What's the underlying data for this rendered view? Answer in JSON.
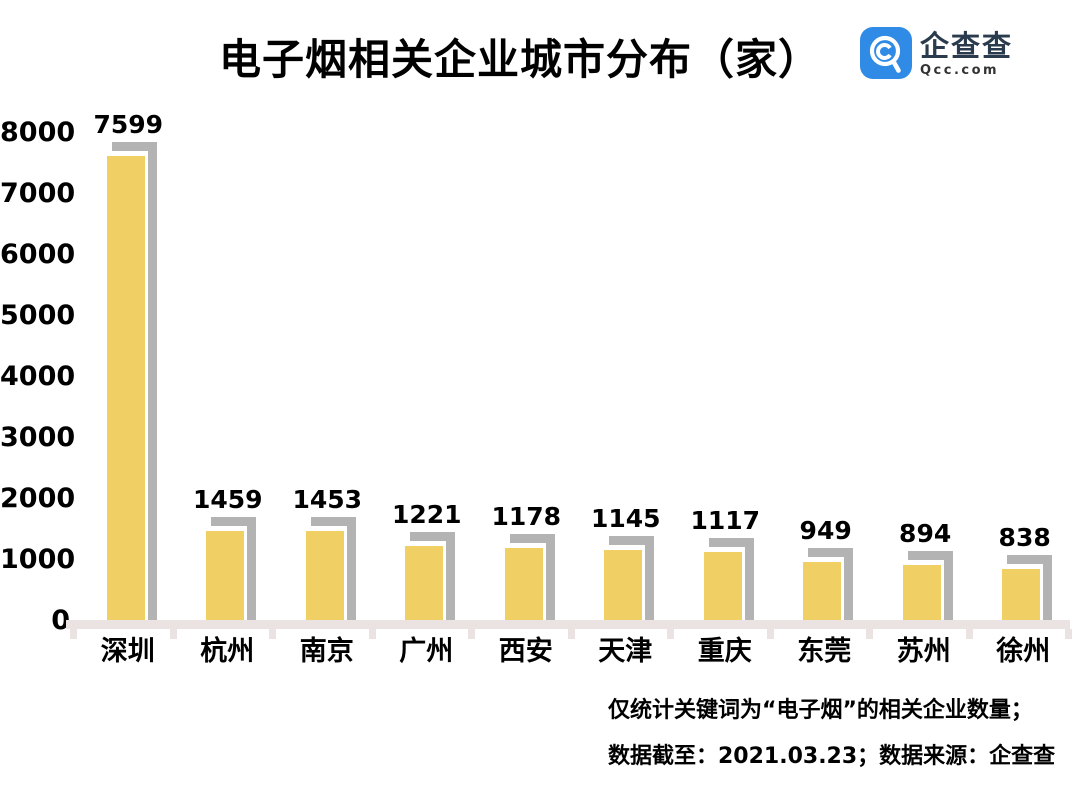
{
  "header": {
    "title": "电子烟相关企业城市分布（家）",
    "logo": {
      "name": "企查查",
      "domain": "Qcc.com",
      "icon": "qcc-magnifier-icon",
      "icon_color": "#2F8BE6"
    }
  },
  "chart_data": {
    "type": "bar",
    "title": "电子烟相关企业城市分布（家）",
    "categories": [
      "深圳",
      "杭州",
      "南京",
      "广州",
      "西安",
      "天津",
      "重庆",
      "东莞",
      "苏州",
      "徐州"
    ],
    "values": [
      7599,
      1459,
      1453,
      1221,
      1178,
      1145,
      1117,
      949,
      894,
      838
    ],
    "xlabel": "",
    "ylabel": "",
    "ylim": [
      0,
      8000
    ],
    "yticks": [
      0,
      1000,
      2000,
      3000,
      4000,
      5000,
      6000,
      7000,
      8000
    ],
    "grid": false,
    "legend": false,
    "value_labels_shown": true,
    "bar_color": "#F0D064",
    "shadow_color": "#B4B3B3",
    "axis_color": "#EBE2E2"
  },
  "footnote": {
    "line1": "仅统计关键词为“电子烟”的相关企业数量；",
    "line2": "数据截至：2021.03.23；数据来源：企查查"
  }
}
